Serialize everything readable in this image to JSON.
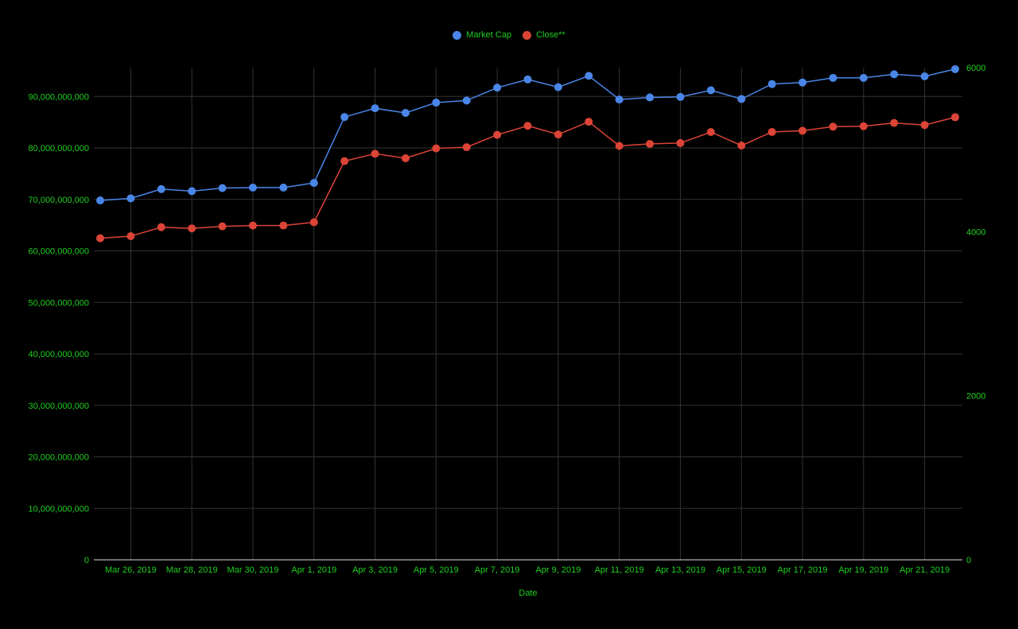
{
  "chart_data": {
    "type": "line",
    "xlabel": "Date",
    "legend_position": "top",
    "grid": true,
    "colors": {
      "background": "#000000",
      "text": "#1fd01f",
      "grid": "#333333",
      "axis": "#e0e0e0"
    },
    "x": [
      "Mar 25, 2019",
      "Mar 26, 2019",
      "Mar 27, 2019",
      "Mar 28, 2019",
      "Mar 29, 2019",
      "Mar 30, 2019",
      "Mar 31, 2019",
      "Apr 1, 2019",
      "Apr 2, 2019",
      "Apr 3, 2019",
      "Apr 4, 2019",
      "Apr 5, 2019",
      "Apr 6, 2019",
      "Apr 7, 2019",
      "Apr 8, 2019",
      "Apr 9, 2019",
      "Apr 10, 2019",
      "Apr 11, 2019",
      "Apr 12, 2019",
      "Apr 13, 2019",
      "Apr 14, 2019",
      "Apr 15, 2019",
      "Apr 16, 2019",
      "Apr 17, 2019",
      "Apr 18, 2019",
      "Apr 19, 2019",
      "Apr 20, 2019",
      "Apr 21, 2019",
      "Apr 22, 2019"
    ],
    "x_ticks": [
      "Mar 26, 2019",
      "Mar 28, 2019",
      "Mar 30, 2019",
      "Apr 1, 2019",
      "Apr 3, 2019",
      "Apr 5, 2019",
      "Apr 7, 2019",
      "Apr 9, 2019",
      "Apr 11, 2019",
      "Apr 13, 2019",
      "Apr 15, 2019",
      "Apr 17, 2019",
      "Apr 19, 2019",
      "Apr 21, 2019"
    ],
    "y_left": {
      "ylim": [
        0,
        95600000000
      ],
      "ticks": [
        "0",
        "10,000,000,000",
        "20,000,000,000",
        "30,000,000,000",
        "40,000,000,000",
        "50,000,000,000",
        "60,000,000,000",
        "70,000,000,000",
        "80,000,000,000",
        "90,000,000,000"
      ]
    },
    "y_right": {
      "ylim": [
        0,
        6000
      ],
      "ticks": [
        "0",
        "2000",
        "4000",
        "6000"
      ]
    },
    "series": [
      {
        "name": "Market Cap",
        "axis": "left",
        "color": "#4a86e8",
        "values": [
          69800000000,
          70200000000,
          72000000000,
          71600000000,
          72200000000,
          72300000000,
          72300000000,
          73200000000,
          86000000000,
          87700000000,
          86800000000,
          88800000000,
          89200000000,
          91700000000,
          93300000000,
          91800000000,
          94000000000,
          89400000000,
          89800000000,
          89900000000,
          91200000000,
          89500000000,
          92400000000,
          92700000000,
          93600000000,
          93600000000,
          94300000000,
          93900000000,
          95300000000
        ]
      },
      {
        "name": "Close**",
        "axis": "right",
        "color": "#db4437",
        "values": [
          3920,
          3945,
          4055,
          4040,
          4065,
          4075,
          4075,
          4115,
          4860,
          4950,
          4895,
          5015,
          5030,
          5180,
          5290,
          5185,
          5340,
          5045,
          5070,
          5080,
          5215,
          5050,
          5215,
          5230,
          5280,
          5285,
          5325,
          5300,
          5395
        ]
      }
    ]
  }
}
